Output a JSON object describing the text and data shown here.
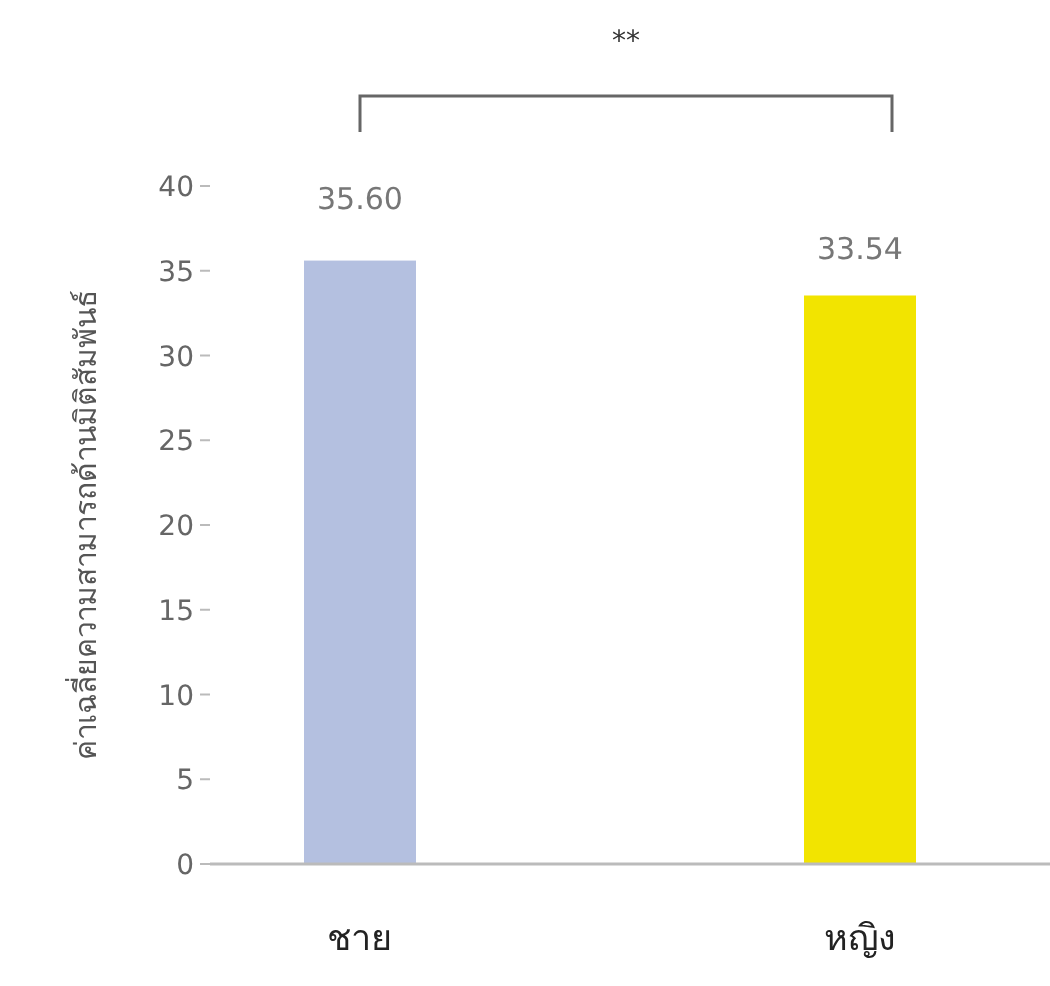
{
  "chart_data": {
    "type": "bar",
    "ylabel": "ค่าเฉลี่ยความสามารถด้านมิติสัมพันธ์",
    "categories": [
      "ชาย",
      "หญิง"
    ],
    "values": [
      35.6,
      33.54
    ],
    "colors": [
      "#b4c0e0",
      "#f2e400"
    ],
    "ylim": [
      0,
      40
    ],
    "yticks": [
      0,
      5,
      10,
      15,
      20,
      25,
      30,
      35,
      40
    ],
    "value_labels": [
      "35.60",
      "33.54"
    ],
    "annotations": [
      "**"
    ]
  }
}
